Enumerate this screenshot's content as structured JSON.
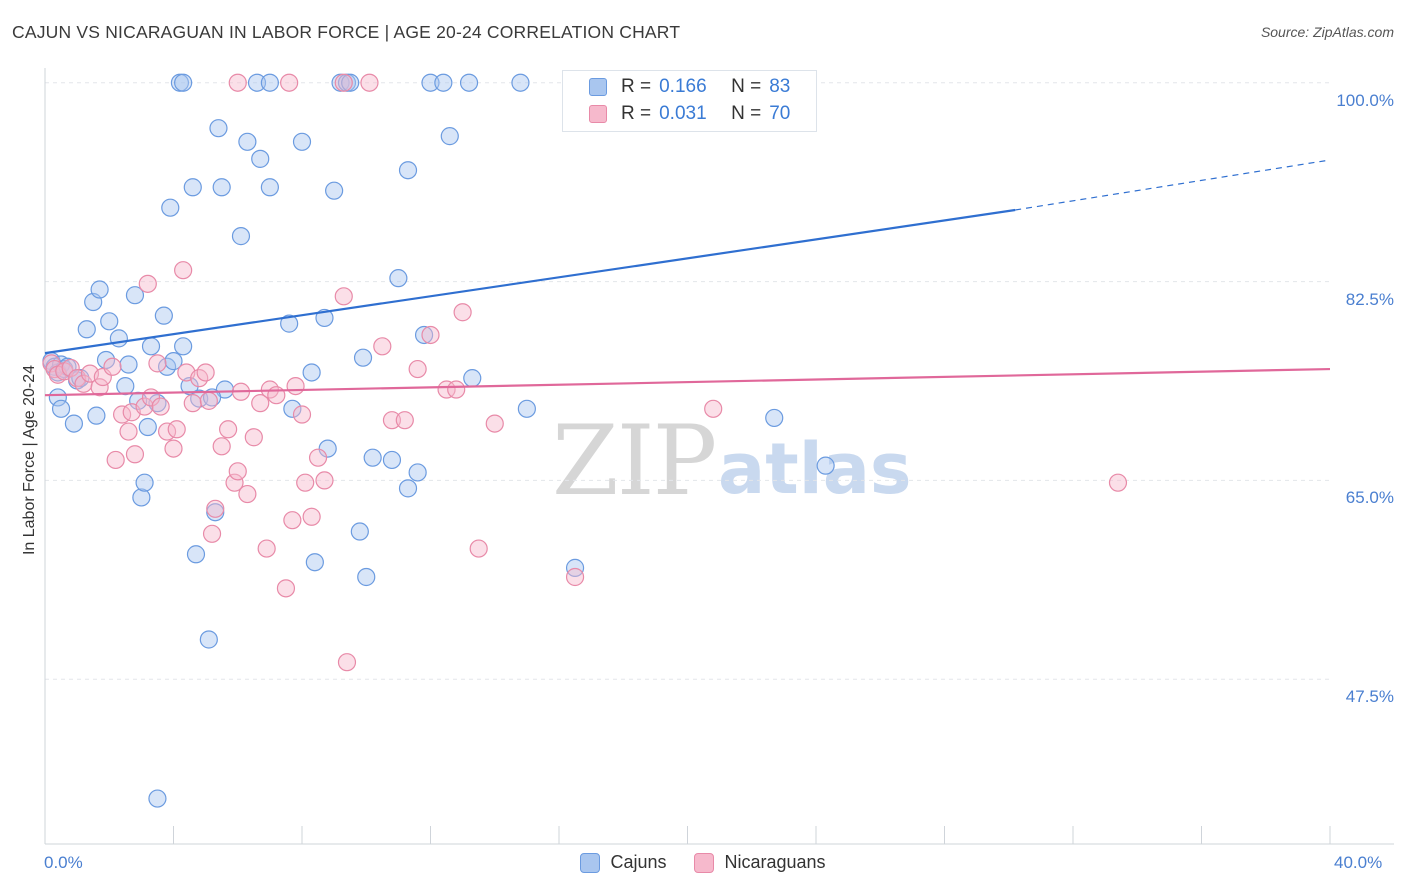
{
  "title": "CAJUN VS NICARAGUAN IN LABOR FORCE | AGE 20-24 CORRELATION CHART",
  "source": "Source: ZipAtlas.com",
  "watermark": {
    "part1": "ZIP",
    "part2": "atlas"
  },
  "legend": {
    "rows": [
      {
        "r_label": "R =",
        "r_value": "0.166",
        "n_label": "N =",
        "n_value": "83"
      },
      {
        "r_label": "R =",
        "r_value": "0.031",
        "n_label": "N =",
        "n_value": "70"
      }
    ],
    "bottom": [
      "Cajuns",
      "Nicaraguans"
    ]
  },
  "colors": {
    "cajun_fill": "#a9c6ef",
    "cajun_stroke": "#6b9be0",
    "cajun_line": "#2f6fd0",
    "nic_fill": "#f6b9cc",
    "nic_stroke": "#e88aa8",
    "nic_line": "#e0689a",
    "grid": "#e3e6ea",
    "tick_text": "#4a7fd0"
  },
  "chart_data": {
    "type": "scatter",
    "title": "CAJUN VS NICARAGUAN IN LABOR FORCE | AGE 20-24 CORRELATION CHART",
    "xlabel": "",
    "ylabel": "In Labor Force | Age 20-24",
    "xlim": [
      0,
      40
    ],
    "ylim": [
      33,
      102
    ],
    "x_tick_labels": [
      "0.0%",
      "40.0%"
    ],
    "y_ticks": [
      47.5,
      65.0,
      82.5,
      100.0
    ],
    "y_tick_labels": [
      "47.5%",
      "65.0%",
      "82.5%",
      "100.0%"
    ],
    "grid": true,
    "legend_position": "top-center",
    "series": [
      {
        "name": "Cajuns",
        "r": 0.166,
        "n": 83,
        "trend": {
          "x": [
            0,
            30.2
          ],
          "y": [
            76.2,
            88.8
          ],
          "dashed_to": [
            40,
            93.2
          ]
        },
        "points": [
          [
            0.2,
            75.5
          ],
          [
            0.3,
            75.0
          ],
          [
            0.4,
            74.5
          ],
          [
            0.5,
            75.2
          ],
          [
            0.6,
            74.8
          ],
          [
            0.7,
            75.0
          ],
          [
            0.4,
            72.3
          ],
          [
            0.5,
            71.3
          ],
          [
            1.0,
            73.8
          ],
          [
            1.1,
            74.0
          ],
          [
            0.9,
            70.0
          ],
          [
            1.6,
            70.7
          ],
          [
            1.3,
            78.3
          ],
          [
            1.5,
            80.7
          ],
          [
            1.7,
            81.8
          ],
          [
            2.0,
            79.0
          ],
          [
            2.3,
            77.5
          ],
          [
            2.5,
            73.3
          ],
          [
            2.6,
            75.2
          ],
          [
            1.9,
            75.6
          ],
          [
            2.8,
            81.3
          ],
          [
            2.9,
            72.0
          ],
          [
            3.2,
            69.7
          ],
          [
            3.3,
            76.8
          ],
          [
            3.5,
            71.8
          ],
          [
            3.7,
            79.5
          ],
          [
            3.8,
            75.0
          ],
          [
            4.0,
            75.5
          ],
          [
            4.3,
            76.8
          ],
          [
            4.5,
            73.3
          ],
          [
            4.8,
            72.2
          ],
          [
            3.0,
            63.5
          ],
          [
            3.1,
            64.8
          ],
          [
            4.7,
            58.5
          ],
          [
            5.1,
            51.0
          ],
          [
            5.3,
            62.2
          ],
          [
            5.6,
            73.0
          ],
          [
            5.5,
            90.8
          ],
          [
            4.6,
            90.8
          ],
          [
            3.9,
            89.0
          ],
          [
            4.2,
            100.0
          ],
          [
            4.3,
            100.0
          ],
          [
            5.4,
            96.0
          ],
          [
            6.1,
            86.5
          ],
          [
            6.3,
            94.8
          ],
          [
            6.7,
            93.3
          ],
          [
            7.0,
            90.8
          ],
          [
            7.6,
            78.8
          ],
          [
            7.7,
            71.3
          ],
          [
            8.0,
            94.8
          ],
          [
            8.3,
            74.5
          ],
          [
            8.4,
            57.8
          ],
          [
            8.7,
            79.3
          ],
          [
            8.8,
            67.8
          ],
          [
            9.0,
            90.5
          ],
          [
            9.2,
            100.0
          ],
          [
            9.4,
            100.0
          ],
          [
            9.5,
            100.0
          ],
          [
            6.6,
            100.0
          ],
          [
            7.0,
            100.0
          ],
          [
            9.8,
            60.5
          ],
          [
            9.9,
            75.8
          ],
          [
            10.2,
            67.0
          ],
          [
            10.0,
            56.5
          ],
          [
            10.8,
            66.8
          ],
          [
            11.0,
            82.8
          ],
          [
            11.3,
            92.3
          ],
          [
            11.3,
            64.3
          ],
          [
            11.6,
            65.7
          ],
          [
            11.8,
            77.8
          ],
          [
            12.0,
            100.0
          ],
          [
            12.4,
            100.0
          ],
          [
            12.6,
            95.3
          ],
          [
            13.2,
            100.0
          ],
          [
            13.3,
            74.0
          ],
          [
            14.8,
            100.0
          ],
          [
            15.0,
            71.3
          ],
          [
            16.5,
            57.3
          ],
          [
            22.0,
            100.0
          ],
          [
            22.7,
            70.5
          ],
          [
            24.3,
            66.3
          ],
          [
            5.2,
            72.3
          ],
          [
            3.5,
            37.0
          ]
        ]
      },
      {
        "name": "Nicaraguans",
        "r": 0.031,
        "n": 70,
        "trend": {
          "x": [
            0,
            40
          ],
          "y": [
            72.5,
            74.8
          ]
        },
        "points": [
          [
            0.2,
            75.3
          ],
          [
            0.3,
            74.8
          ],
          [
            0.4,
            74.3
          ],
          [
            0.6,
            74.6
          ],
          [
            0.8,
            74.9
          ],
          [
            1.0,
            74.0
          ],
          [
            1.2,
            73.5
          ],
          [
            1.4,
            74.4
          ],
          [
            1.7,
            73.2
          ],
          [
            1.8,
            74.1
          ],
          [
            2.1,
            75.0
          ],
          [
            2.2,
            66.8
          ],
          [
            2.4,
            70.8
          ],
          [
            2.6,
            69.3
          ],
          [
            2.7,
            71.0
          ],
          [
            2.8,
            67.3
          ],
          [
            3.1,
            71.5
          ],
          [
            3.3,
            72.3
          ],
          [
            3.5,
            75.3
          ],
          [
            3.6,
            71.5
          ],
          [
            3.8,
            69.3
          ],
          [
            4.0,
            67.8
          ],
          [
            4.1,
            69.5
          ],
          [
            4.3,
            83.5
          ],
          [
            3.2,
            82.3
          ],
          [
            4.4,
            74.5
          ],
          [
            4.6,
            71.8
          ],
          [
            4.8,
            74.0
          ],
          [
            5.0,
            74.5
          ],
          [
            5.1,
            72.0
          ],
          [
            5.2,
            60.3
          ],
          [
            5.3,
            62.5
          ],
          [
            5.5,
            68.0
          ],
          [
            5.7,
            69.5
          ],
          [
            5.9,
            64.8
          ],
          [
            6.0,
            65.8
          ],
          [
            6.1,
            72.8
          ],
          [
            6.3,
            63.8
          ],
          [
            6.5,
            68.8
          ],
          [
            6.7,
            71.8
          ],
          [
            6.9,
            59.0
          ],
          [
            7.0,
            73.0
          ],
          [
            7.2,
            72.5
          ],
          [
            7.5,
            55.5
          ],
          [
            7.7,
            61.5
          ],
          [
            7.8,
            73.3
          ],
          [
            8.0,
            70.8
          ],
          [
            8.1,
            64.8
          ],
          [
            8.3,
            61.8
          ],
          [
            8.5,
            67.0
          ],
          [
            8.7,
            65.0
          ],
          [
            9.3,
            81.2
          ],
          [
            9.4,
            49.0
          ],
          [
            10.5,
            76.8
          ],
          [
            10.8,
            70.3
          ],
          [
            11.2,
            70.3
          ],
          [
            11.6,
            74.8
          ],
          [
            12.0,
            77.8
          ],
          [
            12.5,
            73.0
          ],
          [
            12.8,
            73.0
          ],
          [
            13.0,
            79.8
          ],
          [
            13.5,
            59.0
          ],
          [
            14.0,
            70.0
          ],
          [
            6.0,
            100.0
          ],
          [
            7.6,
            100.0
          ],
          [
            9.3,
            100.0
          ],
          [
            10.1,
            100.0
          ],
          [
            16.5,
            56.5
          ],
          [
            20.8,
            71.3
          ],
          [
            33.4,
            64.8
          ]
        ]
      }
    ]
  }
}
